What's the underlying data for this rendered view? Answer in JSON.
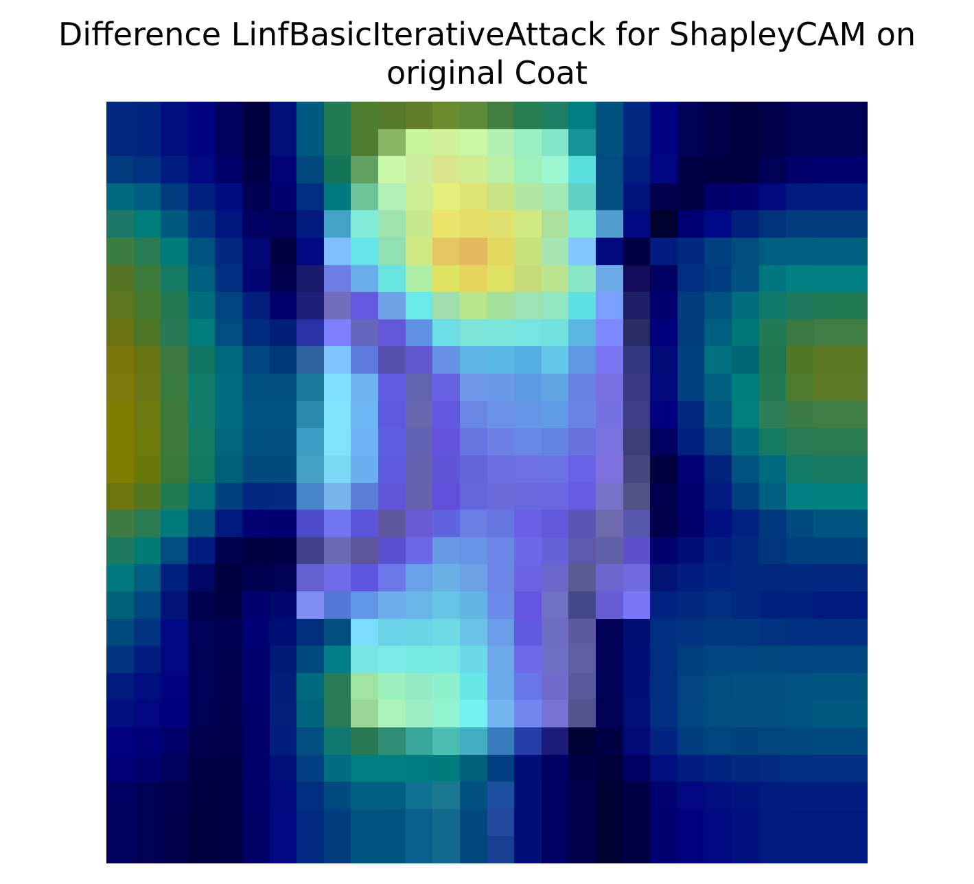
{
  "title": {
    "line1": "Difference LinfBasicIterativeAttack for ShapleyCAM on",
    "line2": "original Coat"
  },
  "heatmap": {
    "rows": 28,
    "cols": 28,
    "colors": [
      [
        "#00297f",
        "#00247f",
        "#000f80",
        "#000380",
        "#00005d",
        "#00003f",
        "#000f7a",
        "#005a7d",
        "#237a56",
        "#4e7c2f",
        "#55792a",
        "#617d2b",
        "#6a8a2e",
        "#5e8a37",
        "#407e3f",
        "#277e50",
        "#1d7e64",
        "#007d80",
        "#00527d",
        "#002a7f",
        "#000380",
        "#000058",
        "#00004b",
        "#00003f",
        "#00004b",
        "#000058",
        "#000058",
        "#000058"
      ],
      [
        "#00297f",
        "#00247f",
        "#000f80",
        "#000380",
        "#00005d",
        "#00003f",
        "#000f7a",
        "#005a7d",
        "#237a56",
        "#4e7c2f",
        "#88b463",
        "#c8f49c",
        "#d1f09a",
        "#cbf7a5",
        "#b0f0b0",
        "#98f0c2",
        "#82e5c7",
        "#1a9396",
        "#00527d",
        "#002a7f",
        "#000380",
        "#000058",
        "#00004b",
        "#00003f",
        "#00004b",
        "#000058",
        "#000058",
        "#000058"
      ],
      [
        "#003c7f",
        "#00327f",
        "#001c80",
        "#000a80",
        "#000068",
        "#000048",
        "#000378",
        "#00497c",
        "#127657",
        "#61a162",
        "#c8f8a8",
        "#cceda0",
        "#dae58c",
        "#cfed8e",
        "#b9f0a4",
        "#a0f0bc",
        "#9cf6d1",
        "#5ae0dc",
        "#004c80",
        "#002080",
        "#000580",
        "#000049",
        "#00003f",
        "#00003f",
        "#000058",
        "#000068",
        "#000070",
        "#000070"
      ],
      [
        "#006982",
        "#005c80",
        "#003d80",
        "#002080",
        "#000d80",
        "#000052",
        "#000070",
        "#00307f",
        "#007a80",
        "#6ec499",
        "#b2f0b8",
        "#ccee94",
        "#e4ef7c",
        "#dfe574",
        "#c9e384",
        "#b3e6a2",
        "#a3e9b6",
        "#5fd0c4",
        "#00517f",
        "#001480",
        "#00004c",
        "#000047",
        "#00006a",
        "#000073",
        "#00087d",
        "#001a82",
        "#001e82",
        "#001e82"
      ],
      [
        "#1c7869",
        "#007d7b",
        "#005a80",
        "#003580",
        "#001680",
        "#000063",
        "#00005c",
        "#001a80",
        "#45a2c7",
        "#82ecd7",
        "#9de2ad",
        "#c7e88d",
        "#eae46c",
        "#e6de68",
        "#e2e170",
        "#d1e985",
        "#addf9c",
        "#81ecd4",
        "#519dd0",
        "#000a80",
        "#00002f",
        "#000075",
        "#000988",
        "#002179",
        "#00337c",
        "#003d80",
        "#003d80",
        "#003d80"
      ],
      [
        "#3c7d42",
        "#287b52",
        "#007a7b",
        "#00527f",
        "#002a80",
        "#000777",
        "#000040",
        "#000a80",
        "#7ebefe",
        "#66e4e6",
        "#91dfaf",
        "#cfe882",
        "#e2c560",
        "#e3bb5e",
        "#e3d960",
        "#c8e37d",
        "#a3e6b2",
        "#82c6fe",
        "#000a7e",
        "#000045",
        "#001c80",
        "#002a80",
        "#003f80",
        "#004d80",
        "#005f80",
        "#005f80",
        "#00617f",
        "#00617f"
      ],
      [
        "#567526",
        "#3c7a39",
        "#147a61",
        "#005f7e",
        "#002e80",
        "#000775",
        "#00004e",
        "#191a6e",
        "#6e7ce6",
        "#69acea",
        "#6ae4e0",
        "#aeeea3",
        "#e0e263",
        "#e5d45e",
        "#dfe164",
        "#c8d979",
        "#b9e48d",
        "#88e6c7",
        "#6aa9e6",
        "#140b5c",
        "#000061",
        "#002e80",
        "#003d80",
        "#005080",
        "#007680",
        "#008080",
        "#008080",
        "#008080"
      ],
      [
        "#5e7520",
        "#457a30",
        "#237a50",
        "#006e7c",
        "#004480",
        "#00207b",
        "#00006e",
        "#1e1f78",
        "#716fbd",
        "#6559df",
        "#6fa1e6",
        "#6ae8e8",
        "#9de0ad",
        "#b8e48b",
        "#a5e09b",
        "#9ae2b2",
        "#92e6c2",
        "#5fe1e1",
        "#7aa0fe",
        "#1f1f66",
        "#00006e",
        "#003d80",
        "#00527f",
        "#006e7f",
        "#0f7a6c",
        "#1e7a5f",
        "#237a56",
        "#237a56"
      ],
      [
        "#6b7313",
        "#4d7727",
        "#287955",
        "#007d7b",
        "#004c80",
        "#002b7f",
        "#002075",
        "#2a32a8",
        "#7e80fe",
        "#6667bd",
        "#6356d7",
        "#6293e2",
        "#6cdfe6",
        "#7be3d5",
        "#79e5da",
        "#75e4df",
        "#72e2de",
        "#5ab5e0",
        "#7e88fe",
        "#2a2c67",
        "#00007a",
        "#003b80",
        "#005e80",
        "#007779",
        "#237a56",
        "#3c7843",
        "#3e7d44",
        "#3e7d44"
      ],
      [
        "#7b7409",
        "#677412",
        "#3c7840",
        "#137664",
        "#006980",
        "#004480",
        "#003977",
        "#2e65a1",
        "#7ec4fe",
        "#607bdf",
        "#5452ad",
        "#6356d0",
        "#6592e2",
        "#5fb3e6",
        "#5ab7e6",
        "#55afe3",
        "#62c8e6",
        "#6198e2",
        "#7c76f2",
        "#313880",
        "#000a78",
        "#003f80",
        "#006f80",
        "#006674",
        "#1f7650",
        "#4f7828",
        "#5d7823",
        "#5d7823"
      ],
      [
        "#7d7a09",
        "#687614",
        "#3a7c40",
        "#107e6a",
        "#006e80",
        "#00517f",
        "#00517f",
        "#1a7898",
        "#80e0ff",
        "#6cb3f0",
        "#615be0",
        "#6165ad",
        "#6861e4",
        "#6c99e8",
        "#6a99e8",
        "#5f99e4",
        "#61a4e2",
        "#6482e0",
        "#7a71e0",
        "#3a3a87",
        "#000a7c",
        "#003f80",
        "#00617f",
        "#007e7d",
        "#247a52",
        "#4d7c2f",
        "#5a7a28",
        "#5a7a28"
      ],
      [
        "#807d05",
        "#6b7a10",
        "#3e7a3e",
        "#117e6e",
        "#006e80",
        "#005480",
        "#005480",
        "#2b8baf",
        "#82e5ff",
        "#6eb7f5",
        "#5b5adf",
        "#6767ad",
        "#6358df",
        "#6787e3",
        "#6a91e6",
        "#6596e6",
        "#609be5",
        "#6a84e6",
        "#7671e3",
        "#3d3d88",
        "#000080",
        "#00297e",
        "#005880",
        "#007f7f",
        "#2d7f5a",
        "#3b7d47",
        "#3e7d44",
        "#3e7d44"
      ],
      [
        "#807d00",
        "#6c7a0a",
        "#3e7a3c",
        "#137a64",
        "#00677d",
        "#00517f",
        "#00517f",
        "#3b9ec3",
        "#7ee2fb",
        "#6cb2f4",
        "#5e5ee3",
        "#6262b4",
        "#6352dc",
        "#6775e3",
        "#6d80e6",
        "#6789e6",
        "#6283e0",
        "#6772e0",
        "#7c73e2",
        "#3d3e76",
        "#000061",
        "#00207d",
        "#004380",
        "#006c80",
        "#167a62",
        "#287b52",
        "#2a7b50",
        "#2a7b50"
      ],
      [
        "#807c00",
        "#687808",
        "#3a7838",
        "#117962",
        "#006079",
        "#004a7c",
        "#004b7c",
        "#45a0c5",
        "#7cd9f6",
        "#6bafee",
        "#5d5cdf",
        "#6460ab",
        "#6153d5",
        "#6366d9",
        "#6a70e2",
        "#6b70e3",
        "#6a72e3",
        "#6762e8",
        "#7e70dd",
        "#474780",
        "#00003f",
        "#000077",
        "#00247d",
        "#00527f",
        "#006b80",
        "#137a68",
        "#1a7b62",
        "#1a7b62"
      ],
      [
        "#6d7410",
        "#537725",
        "#237b54",
        "#00717a",
        "#004180",
        "#002780",
        "#002b80",
        "#4a85cb",
        "#7ab4ec",
        "#5a7dd8",
        "#6055d8",
        "#6761ad",
        "#614fdc",
        "#6466dc",
        "#6a6cde",
        "#6869dc",
        "#6b67e0",
        "#6a59e3",
        "#7a72c8",
        "#525287",
        "#00004d",
        "#000070",
        "#001a80",
        "#00407f",
        "#005f7f",
        "#007d7e",
        "#00817f",
        "#00817f"
      ],
      [
        "#3f7c43",
        "#2c7b53",
        "#007b7b",
        "#00537f",
        "#001a80",
        "#000274",
        "#000072",
        "#4c4cc7",
        "#7075f1",
        "#5c55db",
        "#61579c",
        "#6b5ad6",
        "#6164df",
        "#6a7ee3",
        "#6676e2",
        "#6b60e5",
        "#6256d9",
        "#5b54b4",
        "#6e6aac",
        "#5658ad",
        "#00004d",
        "#000068",
        "#001080",
        "#00237f",
        "#00377e",
        "#004a80",
        "#005480",
        "#005480"
      ],
      [
        "#207a5e",
        "#007c75",
        "#004b80",
        "#001c80",
        "#000051",
        "#000040",
        "#000045",
        "#42428a",
        "#6a6ab0",
        "#5e5697",
        "#5b51cf",
        "#6a67e8",
        "#6799e6",
        "#6594e5",
        "#6a87e8",
        "#6c69e8",
        "#6461d9",
        "#5f58ac",
        "#6060a6",
        "#6050cd",
        "#000070",
        "#000f78",
        "#001d80",
        "#002a80",
        "#00367d",
        "#003f80",
        "#004280",
        "#004280"
      ],
      [
        "#007a7d",
        "#005e80",
        "#00217e",
        "#000765",
        "#00003f",
        "#000051",
        "#000058",
        "#6360d4",
        "#706be6",
        "#5d56e0",
        "#6d78e8",
        "#6aa0e8",
        "#69b1e4",
        "#6b9fe6",
        "#6c86e8",
        "#6d62e3",
        "#6d67c9",
        "#585b94",
        "#6e66cf",
        "#7069e2",
        "#001474",
        "#001e80",
        "#002580",
        "#002680",
        "#00287e",
        "#002a7f",
        "#002880",
        "#002880"
      ],
      [
        "#006179",
        "#004480",
        "#001478",
        "#000050",
        "#000045",
        "#000070",
        "#000870",
        "#7f8ef0",
        "#5377d6",
        "#6195e6",
        "#6cadeb",
        "#68b6e6",
        "#66c3e6",
        "#63b5e6",
        "#6b8ce8",
        "#6756e2",
        "#7070c4",
        "#464987",
        "#685cd4",
        "#7a76f8",
        "#002280",
        "#002a80",
        "#002e80",
        "#00287f",
        "#002080",
        "#002080",
        "#001b7e",
        "#001b7e"
      ],
      [
        "#004a80",
        "#003380",
        "#000a80",
        "#00005a",
        "#000052",
        "#000075",
        "#000f78",
        "#00307c",
        "#004f7e",
        "#7cdcfc",
        "#6bd3e9",
        "#68d4e6",
        "#6ddae6",
        "#6ac3e6",
        "#6a9de8",
        "#6158e0",
        "#6d6cc5",
        "#5e5aa0",
        "#000058",
        "#000d73",
        "#002e80",
        "#003380",
        "#00387e",
        "#00377f",
        "#00337f",
        "#00307f",
        "#002e80",
        "#002e80"
      ],
      [
        "#003580",
        "#001e80",
        "#000780",
        "#000059",
        "#000050",
        "#000070",
        "#001a78",
        "#004a80",
        "#007d88",
        "#77e4e4",
        "#78ece4",
        "#75eae0",
        "#76eae0",
        "#6ad9e8",
        "#6ca9ea",
        "#6c6ae6",
        "#6d70c6",
        "#5f5fa2",
        "#000058",
        "#000f75",
        "#002f80",
        "#003e80",
        "#004680",
        "#00457f",
        "#00457e",
        "#004580",
        "#004680",
        "#004680"
      ],
      [
        "#001a80",
        "#000e80",
        "#00037e",
        "#00005a",
        "#00004f",
        "#00006e",
        "#001f7a",
        "#006a80",
        "#287a58",
        "#9ee3a2",
        "#9cf0bd",
        "#94eac5",
        "#8ff0cd",
        "#69e6e6",
        "#6aaaeb",
        "#6877e9",
        "#716bcb",
        "#58599c",
        "#000056",
        "#000f77",
        "#002e7f",
        "#004380",
        "#004c7e",
        "#00507f",
        "#004e80",
        "#005280",
        "#005480",
        "#005480"
      ],
      [
        "#000e80",
        "#000780",
        "#00007a",
        "#000058",
        "#00004c",
        "#00006a",
        "#00207a",
        "#00647f",
        "#287a59",
        "#9ad695",
        "#acf2bb",
        "#9ceec4",
        "#92f3d0",
        "#76f0f0",
        "#72b6f0",
        "#7286f0",
        "#7874d4",
        "#52528f",
        "#000057",
        "#001076",
        "#00307f",
        "#004580",
        "#004e80",
        "#005080",
        "#00517f",
        "#00557f",
        "#005a7f",
        "#005a7f"
      ],
      [
        "#000080",
        "#000078",
        "#00006a",
        "#00004e",
        "#00004a",
        "#000068",
        "#001f7c",
        "#004f80",
        "#0d7970",
        "#287a52",
        "#308e75",
        "#38a69a",
        "#4cbdb3",
        "#42aec2",
        "#387cbe",
        "#263eaa",
        "#1d1c7a",
        "#000037",
        "#000047",
        "#000a77",
        "#00247f",
        "#003d80",
        "#004580",
        "#00427e",
        "#00447d",
        "#004880",
        "#004a80",
        "#004a80"
      ],
      [
        "#000078",
        "#000070",
        "#00005e",
        "#000049",
        "#000048",
        "#00006a",
        "#000f7a",
        "#003f80",
        "#006d80",
        "#007d7e",
        "#007e80",
        "#007c80",
        "#007a7b",
        "#006079",
        "#003f80",
        "#000f75",
        "#000065",
        "#000048",
        "#000038",
        "#000063",
        "#000f80",
        "#001e80",
        "#002580",
        "#00297f",
        "#002d80",
        "#00307f",
        "#00307f",
        "#00307f"
      ],
      [
        "#000060",
        "#000058",
        "#00004e",
        "#000042",
        "#000048",
        "#000068",
        "#000a7e",
        "#002f80",
        "#004a80",
        "#006080",
        "#006084",
        "#0f7290",
        "#1a7893",
        "#005180",
        "#1d4f9f",
        "#000f77",
        "#000062",
        "#00004c",
        "#000032",
        "#000044",
        "#000270",
        "#000780",
        "#000f80",
        "#001580",
        "#001c80",
        "#001e80",
        "#001e80",
        "#001e80"
      ],
      [
        "#00005e",
        "#000056",
        "#00004c",
        "#000040",
        "#000047",
        "#000066",
        "#00087f",
        "#002b80",
        "#003c80",
        "#005580",
        "#005480",
        "#0a608f",
        "#14698f",
        "#004780",
        "#234a9e",
        "#000f77",
        "#000062",
        "#00004c",
        "#000032",
        "#000044",
        "#000070",
        "#000080",
        "#000a80",
        "#001080",
        "#001a80",
        "#001a80",
        "#001a80",
        "#001a80"
      ],
      [
        "#00005e",
        "#000056",
        "#00004c",
        "#000040",
        "#000047",
        "#000066",
        "#00087f",
        "#002b80",
        "#003c80",
        "#005580",
        "#005480",
        "#0a608f",
        "#14698f",
        "#004780",
        "#173f90",
        "#000f77",
        "#000062",
        "#00004c",
        "#000032",
        "#000044",
        "#000070",
        "#000080",
        "#000a80",
        "#001080",
        "#001a80",
        "#001a80",
        "#001a80",
        "#001a80"
      ]
    ]
  }
}
